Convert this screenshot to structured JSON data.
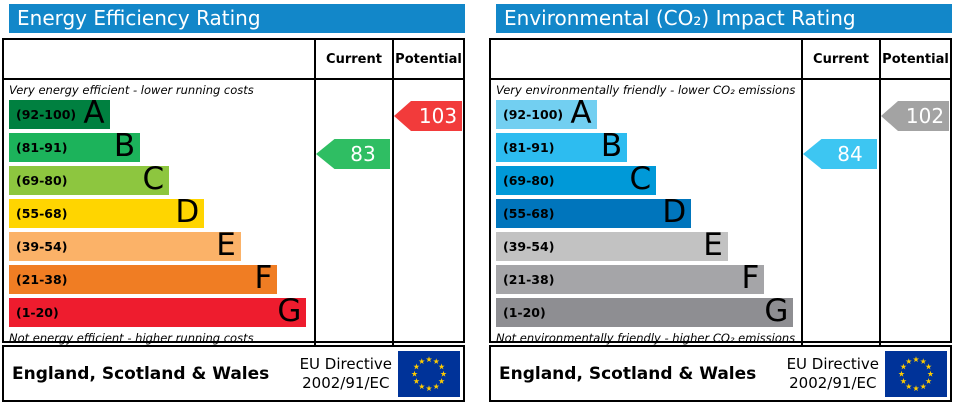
{
  "colors": {
    "header_bg": "#1287c9"
  },
  "footer": {
    "region": "England, Scotland & Wales",
    "directive_line1": "EU Directive",
    "directive_line2": "2002/91/EC",
    "flag_bg": "#003399",
    "flag_star": "#ffcc00"
  },
  "chart_data": [
    {
      "type": "bar",
      "title": "Energy Efficiency Rating",
      "columns": [
        "Current",
        "Potential"
      ],
      "top_note": "Very energy efficient - lower running costs",
      "bottom_note": "Not energy efficient - higher running costs",
      "bands": [
        {
          "label": "A",
          "range": "(92-100)",
          "color": "#008040",
          "width_pct": 33
        },
        {
          "label": "B",
          "range": "(81-91)",
          "color": "#1cb35b",
          "width_pct": 43
        },
        {
          "label": "C",
          "range": "(69-80)",
          "color": "#8dc63f",
          "width_pct": 52.5
        },
        {
          "label": "D",
          "range": "(55-68)",
          "color": "#ffd500",
          "width_pct": 64
        },
        {
          "label": "E",
          "range": "(39-54)",
          "color": "#fbb268",
          "width_pct": 76
        },
        {
          "label": "F",
          "range": "(21-38)",
          "color": "#f07d23",
          "width_pct": 88
        },
        {
          "label": "G",
          "range": "(1-20)",
          "color": "#ee1c2e",
          "width_pct": 97.5
        }
      ],
      "current": {
        "value": 83,
        "band": "B",
        "row": 1,
        "color": "#2fbe63"
      },
      "potential": {
        "value": 103,
        "band": "A",
        "row": 0,
        "color": "#f23b3b"
      }
    },
    {
      "type": "bar",
      "title": "Environmental (CO₂) Impact Rating",
      "columns": [
        "Current",
        "Potential"
      ],
      "top_note": "Very environmentally friendly - lower CO₂ emissions",
      "bottom_note": "Not environmentally friendly - higher CO₂ emissions",
      "bands": [
        {
          "label": "A",
          "range": "(92-100)",
          "color": "#72cff1",
          "width_pct": 33
        },
        {
          "label": "B",
          "range": "(81-91)",
          "color": "#2dbcf0",
          "width_pct": 43
        },
        {
          "label": "C",
          "range": "(69-80)",
          "color": "#0099d8",
          "width_pct": 52.5
        },
        {
          "label": "D",
          "range": "(55-68)",
          "color": "#0075bc",
          "width_pct": 64
        },
        {
          "label": "E",
          "range": "(39-54)",
          "color": "#c2c2c2",
          "width_pct": 76
        },
        {
          "label": "F",
          "range": "(21-38)",
          "color": "#a5a5a8",
          "width_pct": 88
        },
        {
          "label": "G",
          "range": "(1-20)",
          "color": "#8e8e92",
          "width_pct": 97.5
        }
      ],
      "current": {
        "value": 84,
        "band": "B",
        "row": 1,
        "color": "#3dc6f2"
      },
      "potential": {
        "value": 102,
        "band": "A",
        "row": 0,
        "color": "#a3a3a3"
      }
    }
  ]
}
